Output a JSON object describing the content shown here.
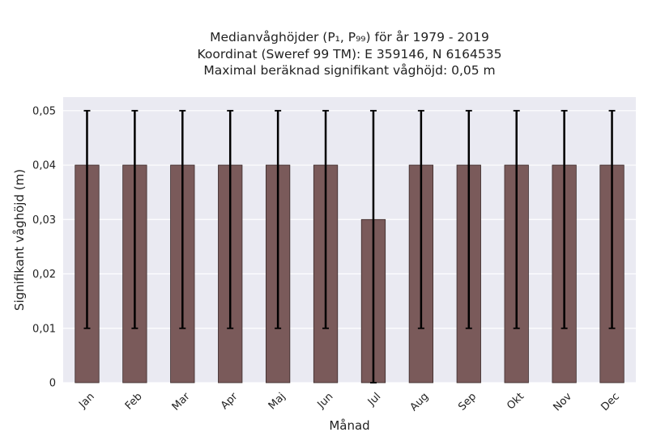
{
  "chart_data": {
    "type": "bar",
    "title_lines": [
      "Medianvåghöjder (P₁, P₉₉) för år 1979 - 2019",
      "Koordinat (Sweref 99 TM): E 359146, N 6164535",
      "Maximal beräknad signifikant våghöjd: 0,05 m"
    ],
    "xlabel": "Månad",
    "ylabel": "Signifikant våghöjd (m)",
    "categories": [
      "Jan",
      "Feb",
      "Mar",
      "Apr",
      "Maj",
      "Jun",
      "Jul",
      "Aug",
      "Sep",
      "Okt",
      "Nov",
      "Dec"
    ],
    "values": [
      0.04,
      0.04,
      0.04,
      0.04,
      0.04,
      0.04,
      0.03,
      0.04,
      0.04,
      0.04,
      0.04,
      0.04
    ],
    "error_low": [
      0.01,
      0.01,
      0.01,
      0.01,
      0.01,
      0.01,
      0.0,
      0.01,
      0.01,
      0.01,
      0.01,
      0.01
    ],
    "error_high": [
      0.05,
      0.05,
      0.05,
      0.05,
      0.05,
      0.05,
      0.05,
      0.05,
      0.05,
      0.05,
      0.05,
      0.05
    ],
    "ylim": [
      0,
      0.0525
    ],
    "yticks": [
      0,
      0.01,
      0.02,
      0.03,
      0.04,
      0.05
    ],
    "ytick_labels": [
      "0",
      "0,01",
      "0,02",
      "0,03",
      "0,04",
      "0,05"
    ],
    "grid": true,
    "colors": {
      "bar": "#7a5a5a",
      "bar_edge": "#3a2a2a",
      "errorbar": "#000000",
      "plot_bg": "#eaeaf2",
      "grid": "#ffffff"
    }
  }
}
